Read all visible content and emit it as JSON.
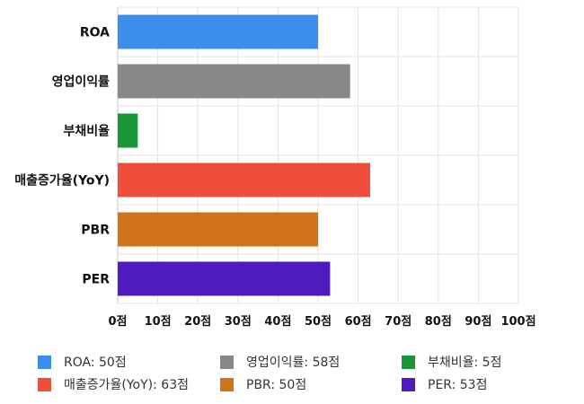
{
  "chart_data": {
    "type": "bar",
    "orientation": "horizontal",
    "categories": [
      "ROA",
      "영업이익률",
      "부채비율",
      "매출증가율(YoY)",
      "PBR",
      "PER"
    ],
    "values": [
      50,
      58,
      5,
      63,
      50,
      53
    ],
    "colors": [
      "#3b8eea",
      "#888888",
      "#1a9639",
      "#ef4f3a",
      "#d1731a",
      "#4f1bbf"
    ],
    "xlim": [
      0,
      100
    ],
    "x_ticks": [
      "0점",
      "10점",
      "20점",
      "30점",
      "40점",
      "50점",
      "60점",
      "70점",
      "80점",
      "90점",
      "100점"
    ],
    "grid": true,
    "legend_position": "bottom",
    "legend": [
      {
        "label": "ROA: 50점",
        "color": "#3b8eea"
      },
      {
        "label": "영업이익률: 58점",
        "color": "#888888"
      },
      {
        "label": "부채비율: 5점",
        "color": "#1a9639"
      },
      {
        "label": "매출증가율(YoY): 63점",
        "color": "#ef4f3a"
      },
      {
        "label": "PBR: 50점",
        "color": "#d1731a"
      },
      {
        "label": "PER: 53점",
        "color": "#4f1bbf"
      }
    ]
  }
}
